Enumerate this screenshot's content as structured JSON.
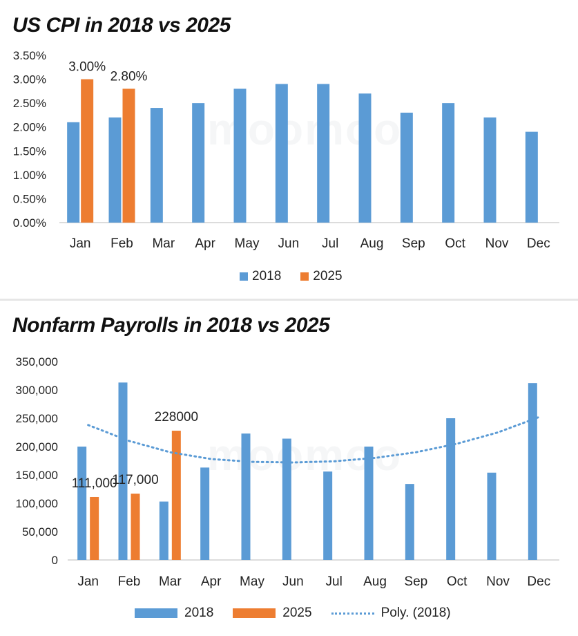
{
  "colors": {
    "s2018": "#5b9bd5",
    "s2025": "#ed7d31",
    "trend": "#5b9bd5",
    "axis": "#d0d0d0",
    "text": "#222222"
  },
  "watermark": {
    "text": "moomoo"
  },
  "chart_data": [
    {
      "type": "bar",
      "title": "US CPI in 2018 vs 2025",
      "categories": [
        "Jan",
        "Feb",
        "Mar",
        "Apr",
        "May",
        "Jun",
        "Jul",
        "Aug",
        "Sep",
        "Oct",
        "Nov",
        "Dec"
      ],
      "series": [
        {
          "name": "2018",
          "values": [
            2.1,
            2.2,
            2.4,
            2.5,
            2.8,
            2.9,
            2.9,
            2.7,
            2.3,
            2.5,
            2.2,
            1.9
          ]
        },
        {
          "name": "2025",
          "values": [
            3.0,
            2.8,
            null,
            null,
            null,
            null,
            null,
            null,
            null,
            null,
            null,
            null
          ]
        }
      ],
      "data_labels": [
        {
          "series": "2025",
          "category": "Jan",
          "text": "3.00%"
        },
        {
          "series": "2025",
          "category": "Feb",
          "text": "2.80%"
        }
      ],
      "yticks": [
        "0.00%",
        "0.50%",
        "1.00%",
        "1.50%",
        "2.00%",
        "2.50%",
        "3.00%",
        "3.50%"
      ],
      "ylim": [
        0,
        3.5
      ],
      "legend_position": "bottom",
      "grid": false
    },
    {
      "type": "bar",
      "title": "Nonfarm Payrolls in 2018 vs 2025",
      "categories": [
        "Jan",
        "Feb",
        "Mar",
        "Apr",
        "May",
        "Jun",
        "Jul",
        "Aug",
        "Sep",
        "Oct",
        "Nov",
        "Dec"
      ],
      "series": [
        {
          "name": "2018",
          "values": [
            200000,
            313000,
            103000,
            163000,
            223000,
            214000,
            156000,
            200000,
            134000,
            250000,
            154000,
            312000
          ]
        },
        {
          "name": "2025",
          "values": [
            111000,
            117000,
            228000,
            null,
            null,
            null,
            null,
            null,
            null,
            null,
            null,
            null
          ]
        },
        {
          "name": "Poly. (2018)",
          "type": "trendline",
          "values": [
            238000,
            210000,
            190000,
            178000,
            173000,
            172000,
            174000,
            180000,
            190000,
            205000,
            225000,
            252000
          ]
        }
      ],
      "data_labels": [
        {
          "series": "2025",
          "category": "Jan",
          "text": "111,000"
        },
        {
          "series": "2025",
          "category": "Feb",
          "text": "117,000"
        },
        {
          "series": "2025",
          "category": "Mar",
          "text": "228000"
        }
      ],
      "yticks": [
        "0",
        "50,000",
        "100,000",
        "150,000",
        "200,000",
        "250,000",
        "300,000",
        "350,000"
      ],
      "ylim": [
        0,
        350000
      ],
      "legend_position": "bottom",
      "grid": false
    }
  ]
}
